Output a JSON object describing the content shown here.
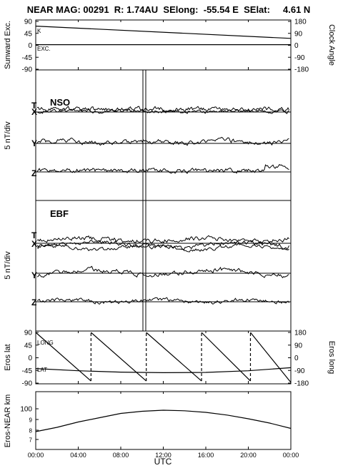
{
  "header": "NEAR MAG: 00291  R: 1.74AU  SElong:  -55.54 E  SElat:     4.61 N",
  "x_axis": {
    "ticks": [
      "00:00",
      "04:00",
      "08:00",
      "12:00",
      "16:00",
      "20:00",
      "00:00"
    ],
    "label": "UTC"
  },
  "chart_data": [
    {
      "type": "line",
      "panel": "sunward",
      "ylabel_left": "Sunward Exc.",
      "ylabel_right": "Clock Angle",
      "left_ticks": [
        "90",
        "45",
        "0",
        "-45",
        "-90"
      ],
      "right_ticks": [
        "180",
        "90",
        "0",
        "-90",
        "-180"
      ],
      "ylim": [
        -90,
        90
      ],
      "series": [
        {
          "name": "K",
          "x": [
            0,
            24
          ],
          "y": [
            72,
            25
          ]
        },
        {
          "name": "EXC.",
          "x": [
            0,
            24
          ],
          "y": [
            1,
            1
          ]
        }
      ]
    },
    {
      "type": "line",
      "panel": "NSO",
      "title": "NSO",
      "ylabel": "5 nT/div",
      "series": [
        {
          "name": "T"
        },
        {
          "name": "X"
        },
        {
          "name": "Y"
        },
        {
          "name": "Z"
        }
      ]
    },
    {
      "type": "line",
      "panel": "EBF",
      "title": "EBF",
      "ylabel": "5 nT/div",
      "series": [
        {
          "name": "T"
        },
        {
          "name": "X"
        },
        {
          "name": "Y"
        },
        {
          "name": "Z"
        }
      ]
    },
    {
      "type": "line",
      "panel": "eros",
      "ylabel_left": "Eros lat",
      "ylabel_right": "Eros long",
      "left_ticks": [
        "90",
        "45",
        "0",
        "-45",
        "-90"
      ],
      "right_ticks": [
        "180",
        "90",
        "0",
        "-90",
        "-180"
      ],
      "ylim": [
        -90,
        90
      ],
      "series": [
        {
          "name": "LONG",
          "x": [
            0,
            5.2,
            5.2,
            10.4,
            10.4,
            15.6,
            15.6,
            20.2,
            20.2,
            24
          ],
          "y": [
            180,
            -170,
            180,
            -170,
            180,
            -170,
            180,
            -170,
            180,
            -180
          ]
        },
        {
          "name": "LAT",
          "x": [
            0,
            4,
            8,
            12,
            16,
            20,
            24
          ],
          "y": [
            -40,
            -48,
            -53,
            -55,
            -54,
            -48,
            -37
          ]
        }
      ]
    },
    {
      "type": "line",
      "panel": "range",
      "ylabel": "Eros-NEAR km",
      "left_ticks": [
        "100",
        "9",
        "8",
        "7"
      ],
      "series": [
        {
          "name": "Eros-NEAR",
          "x": [
            0,
            2,
            4,
            6,
            8,
            10,
            12,
            14,
            16,
            18,
            20,
            22,
            24
          ],
          "y": [
            8.0,
            8.4,
            8.9,
            9.3,
            9.7,
            9.9,
            10.0,
            9.95,
            9.8,
            9.55,
            9.2,
            8.8,
            8.3
          ]
        }
      ]
    }
  ]
}
